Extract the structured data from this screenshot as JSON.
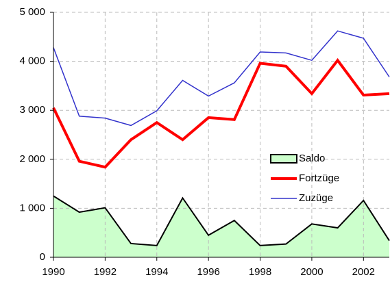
{
  "chart_data": {
    "type": "line",
    "x": [
      1990,
      1991,
      1992,
      1993,
      1994,
      1995,
      1996,
      1997,
      1998,
      1999,
      2000,
      2001,
      2002,
      2003
    ],
    "series": [
      {
        "name": "Saldo",
        "color": "#ccffcc",
        "kind": "area",
        "values": [
          1250,
          920,
          1010,
          280,
          240,
          1210,
          450,
          750,
          240,
          270,
          680,
          600,
          1160,
          340
        ]
      },
      {
        "name": "Fortzüge",
        "color": "#ff0000",
        "values": [
          3050,
          1960,
          1840,
          2400,
          2750,
          2400,
          2850,
          2810,
          3960,
          3900,
          3340,
          4020,
          3310,
          3340
        ]
      },
      {
        "name": "Zuzüge",
        "color": "#3333cc",
        "values": [
          4280,
          2880,
          2840,
          2690,
          2990,
          3610,
          3290,
          3560,
          4190,
          4170,
          4020,
          4620,
          4470,
          3680
        ]
      }
    ],
    "xlim": [
      1990,
      2003
    ],
    "xticks": [
      1990,
      1992,
      1994,
      1996,
      1998,
      2000,
      2002
    ],
    "ylim": [
      0,
      5000
    ],
    "yticks": [
      0,
      {
        "value": 1000,
        "label": "1 000"
      },
      {
        "value": 2000,
        "label": "2 000"
      },
      {
        "value": 3000,
        "label": "3 000"
      },
      {
        "value": 4000,
        "label": "4 000"
      },
      {
        "value": 5000,
        "label": "5 000"
      }
    ],
    "grid": true,
    "legend": "right"
  }
}
